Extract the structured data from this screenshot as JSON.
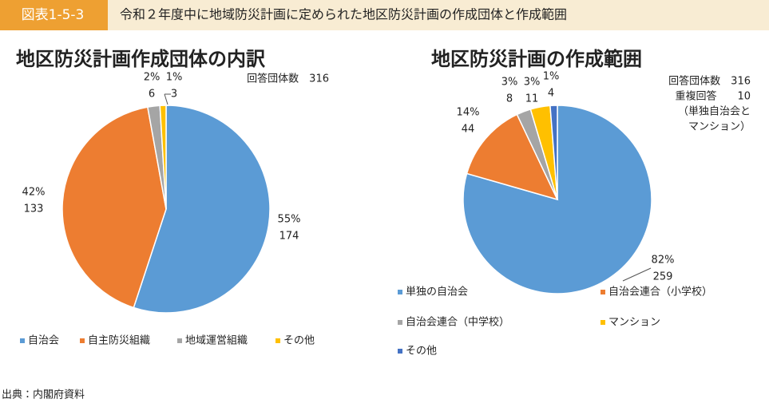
{
  "header": {
    "figure_no": "図表1-5-3",
    "title": "令和２年度中に地域防災計画に定められた地区防災計画の作成団体と作成範囲"
  },
  "chart_data": [
    {
      "type": "pie",
      "title": "地区防災計画作成団体の内訳",
      "notes": [
        "回答団体数　316"
      ],
      "categories": [
        "自治会",
        "自主防災組織",
        "地域運営組織",
        "その他"
      ],
      "values": [
        174,
        133,
        6,
        3
      ],
      "percent_labels": [
        "55%",
        "42%",
        "2%",
        "1%"
      ],
      "colors": [
        "#5b9bd5",
        "#ed7d31",
        "#a5a5a5",
        "#ffc000"
      ]
    },
    {
      "type": "pie",
      "title": "地区防災計画の作成範囲",
      "notes": [
        "回答団体数　316",
        "重複回答　　10",
        "（単独自治会と",
        "マンション）"
      ],
      "categories": [
        "単独の自治会",
        "自治会連合（小学校）",
        "自治会連合（中学校）",
        "マンション",
        "その他"
      ],
      "values": [
        259,
        44,
        8,
        11,
        4
      ],
      "percent_labels": [
        "82%",
        "14%",
        "3%",
        "3%",
        "1%"
      ],
      "colors": [
        "#5b9bd5",
        "#ed7d31",
        "#a5a5a5",
        "#ffc000",
        "#4472c4"
      ]
    }
  ],
  "footer": "出典：内閣府資料"
}
